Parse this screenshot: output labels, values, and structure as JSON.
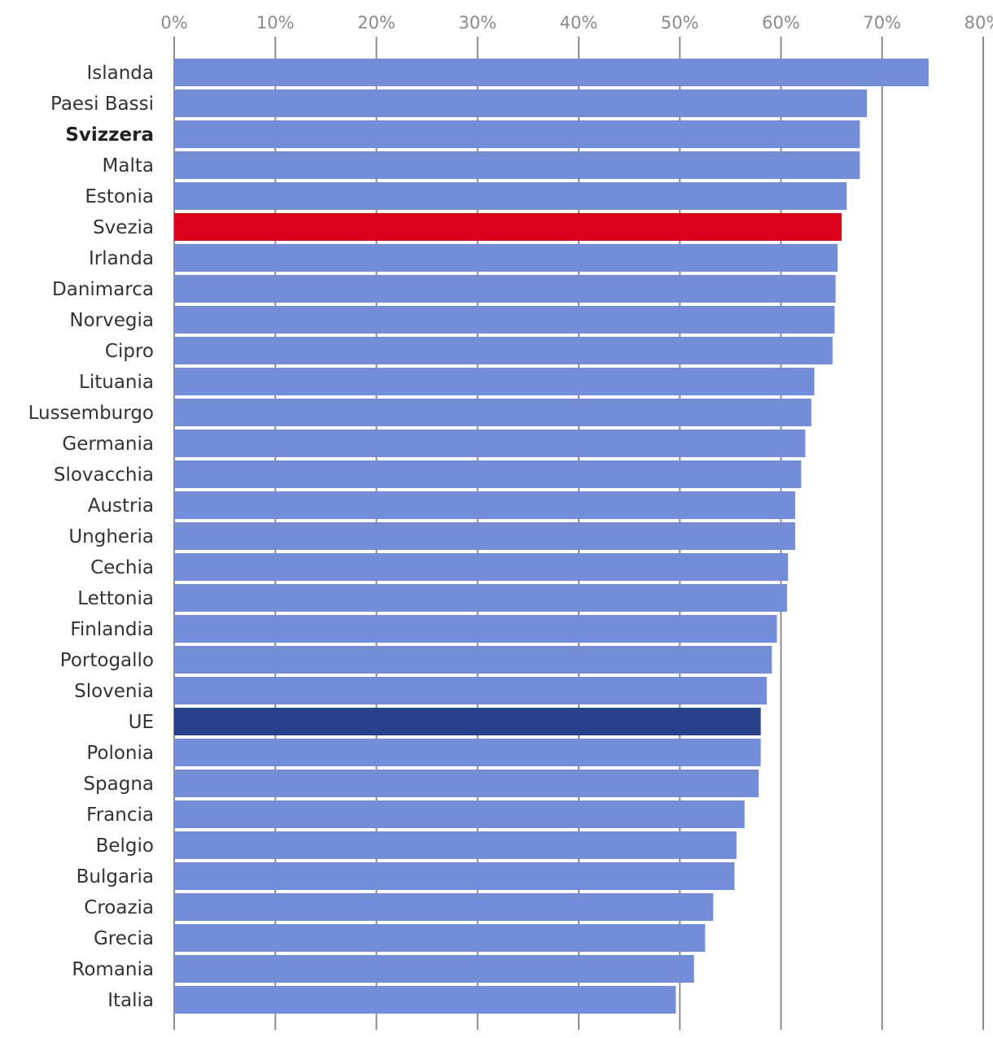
{
  "chart_data": {
    "type": "bar",
    "orientation": "horizontal",
    "title": "",
    "xlabel": "",
    "ylabel": "",
    "xlim": [
      0,
      80
    ],
    "ticks": [
      "0%",
      "10%",
      "20%",
      "30%",
      "40%",
      "50%",
      "60%",
      "70%",
      "80%"
    ],
    "grid": true,
    "colors": {
      "default": "#738dd9",
      "highlight": "#dd001b",
      "average": "#29408a",
      "grid": "#8c8c8c"
    },
    "bars": [
      {
        "label": "Islanda",
        "value": 74.6
      },
      {
        "label": "Paesi Bassi",
        "value": 68.5
      },
      {
        "label": "Svizzera",
        "value": 67.8,
        "bold": true
      },
      {
        "label": "Malta",
        "value": 67.8
      },
      {
        "label": "Estonia",
        "value": 66.5
      },
      {
        "label": "Svezia",
        "value": 66.0,
        "style": "highlight"
      },
      {
        "label": "Irlanda",
        "value": 65.6
      },
      {
        "label": "Danimarca",
        "value": 65.4
      },
      {
        "label": "Norvegia",
        "value": 65.3
      },
      {
        "label": "Cipro",
        "value": 65.1
      },
      {
        "label": "Lituania",
        "value": 63.3
      },
      {
        "label": "Lussemburgo",
        "value": 63.0
      },
      {
        "label": "Germania",
        "value": 62.4
      },
      {
        "label": "Slovacchia",
        "value": 62.0
      },
      {
        "label": "Austria",
        "value": 61.4
      },
      {
        "label": "Ungheria",
        "value": 61.4
      },
      {
        "label": "Cechia",
        "value": 60.7
      },
      {
        "label": "Lettonia",
        "value": 60.6
      },
      {
        "label": "Finlandia",
        "value": 59.6
      },
      {
        "label": "Portogallo",
        "value": 59.1
      },
      {
        "label": "Slovenia",
        "value": 58.6
      },
      {
        "label": "UE",
        "value": 58.0,
        "style": "average"
      },
      {
        "label": "Polonia",
        "value": 58.0
      },
      {
        "label": "Spagna",
        "value": 57.8
      },
      {
        "label": "Francia",
        "value": 56.4
      },
      {
        "label": "Belgio",
        "value": 55.6
      },
      {
        "label": "Bulgaria",
        "value": 55.4
      },
      {
        "label": "Croazia",
        "value": 53.3
      },
      {
        "label": "Grecia",
        "value": 52.5
      },
      {
        "label": "Romania",
        "value": 51.4
      },
      {
        "label": "Italia",
        "value": 49.6
      }
    ]
  }
}
